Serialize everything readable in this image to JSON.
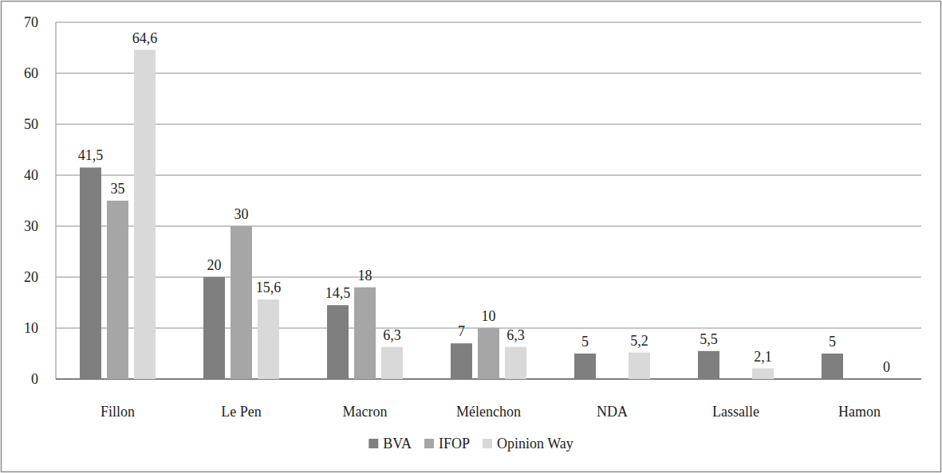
{
  "chart_data": {
    "type": "bar",
    "categories": [
      "Fillon",
      "Le Pen",
      "Macron",
      "Mélenchon",
      "NDA",
      "Lassalle",
      "Hamon"
    ],
    "series": [
      {
        "name": "BVA",
        "color": "#7f7f7f",
        "values": [
          41.5,
          20,
          14.5,
          7,
          5,
          5.5,
          5
        ],
        "value_labels": [
          "41,5",
          "20",
          "14,5",
          "7",
          "5",
          "5,5",
          "5"
        ]
      },
      {
        "name": "IFOP",
        "color": "#a6a6a6",
        "values": [
          35,
          30,
          18,
          10,
          null,
          null,
          null
        ],
        "value_labels": [
          "35",
          "30",
          "18",
          "10",
          null,
          null,
          null
        ]
      },
      {
        "name": "Opinion Way",
        "color": "#d9d9d9",
        "values": [
          64.6,
          15.6,
          6.3,
          6.3,
          5.2,
          2.1,
          0
        ],
        "value_labels": [
          "64,6",
          "15,6",
          "6,3",
          "6,3",
          "5,2",
          "2,1",
          "0"
        ]
      }
    ],
    "ylim": [
      0,
      70
    ],
    "yticks": [
      0,
      10,
      20,
      30,
      40,
      50,
      60,
      70
    ],
    "grid": true,
    "legend": "bottom",
    "data_labels": true
  }
}
